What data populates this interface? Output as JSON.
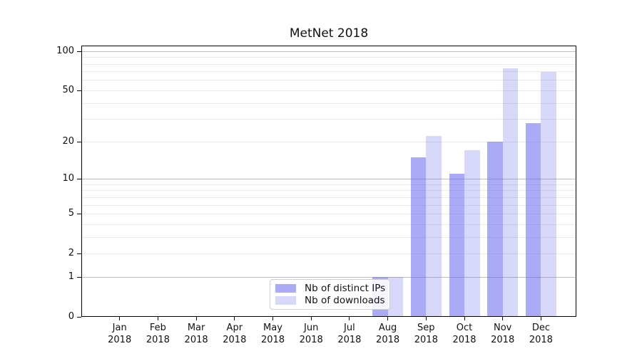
{
  "title": "MetNet 2018",
  "legend": {
    "items": [
      {
        "label": "Nb of distinct IPs",
        "color": "rgba(100,100,240,0.55)"
      },
      {
        "label": "Nb of downloads",
        "color": "rgba(100,100,240,0.25)"
      }
    ]
  },
  "chart_data": {
    "type": "bar",
    "title": "MetNet 2018",
    "categories": [
      "Jan",
      "Feb",
      "Mar",
      "Apr",
      "May",
      "Jun",
      "Jul",
      "Aug",
      "Sep",
      "Oct",
      "Nov",
      "Dec"
    ],
    "year": "2018",
    "series": [
      {
        "name": "Nb of distinct IPs",
        "values": [
          0,
          0,
          0,
          0,
          0,
          0,
          0,
          1,
          15,
          11,
          20,
          28
        ],
        "color": "rgba(100,100,240,0.55)"
      },
      {
        "name": "Nb of downloads",
        "values": [
          0,
          0,
          0,
          0,
          0,
          0,
          0,
          1,
          22,
          17,
          74,
          69
        ],
        "color": "rgba(100,100,240,0.25)"
      }
    ],
    "xlabel": "",
    "ylabel": "",
    "yscale": "symlog (log1p)",
    "ylim": [
      0,
      110
    ],
    "ytick_labels": [
      "0",
      "1",
      "2",
      "5",
      "10",
      "20",
      "50",
      "100"
    ],
    "yticks": [
      0,
      1,
      2,
      5,
      10,
      20,
      50,
      100
    ],
    "major_gridlines": [
      1,
      10,
      100
    ],
    "minor_gridlines": [
      2,
      3,
      4,
      5,
      6,
      7,
      8,
      9,
      20,
      30,
      40,
      50,
      60,
      70,
      80,
      90
    ],
    "grid": true,
    "legend_position": "inside bottom-center"
  }
}
